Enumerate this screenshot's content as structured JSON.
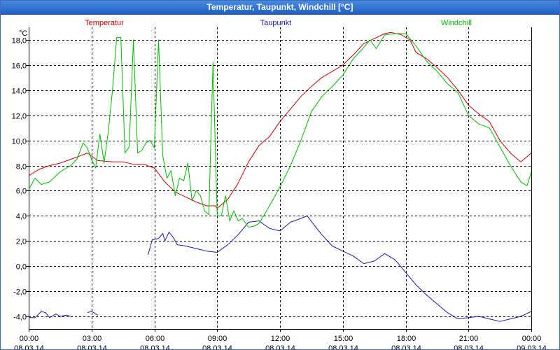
{
  "window": {
    "title": "Temperatur, Taupunkt, Windchill [°C]"
  },
  "colors": {
    "temperatur": "#cc0000",
    "taupunkt": "#1a1aaa",
    "windchill": "#00bb00",
    "titlebar": "#2f72d4"
  },
  "chart_data": {
    "type": "line",
    "title": "Temperatur, Taupunkt, Windchill [°C]",
    "ylabel": "°C",
    "xlabel": "",
    "ylim": [
      -5,
      19
    ],
    "xlim": [
      0,
      24
    ],
    "y_ticks": [
      -4,
      -2,
      0,
      2,
      4,
      6,
      8,
      10,
      12,
      14,
      16,
      18
    ],
    "y_tick_labels": [
      "-4,0",
      "-2,0",
      "0,0",
      "2,0",
      "4,0",
      "6,0",
      "8,0",
      "10,0",
      "12,0",
      "14,0",
      "16,0",
      "18,0"
    ],
    "x_ticks": [
      0,
      3,
      6,
      9,
      12,
      15,
      18,
      21,
      24
    ],
    "x_tick_labels": [
      [
        "00:00",
        "08.03.14"
      ],
      [
        "03:00",
        "08.03.14"
      ],
      [
        "06:00",
        "08.03.14"
      ],
      [
        "09:00",
        "08.03.14"
      ],
      [
        "12:00",
        "08.03.14"
      ],
      [
        "15:00",
        "08.03.14"
      ],
      [
        "18:00",
        "08.03.14"
      ],
      [
        "21:00",
        "08.03.14"
      ],
      [
        "00:00",
        "09.03.14"
      ]
    ],
    "grid": true,
    "legend": [
      "Temperatur",
      "Taupunkt",
      "Windchill"
    ],
    "series": [
      {
        "name": "Temperatur",
        "color": "#cc0000",
        "segments": [
          [
            [
              0.0,
              7.2
            ],
            [
              0.5,
              7.7
            ],
            [
              1.0,
              8.0
            ],
            [
              1.5,
              8.2
            ],
            [
              2.0,
              8.5
            ],
            [
              2.5,
              8.8
            ],
            [
              2.8,
              9.0
            ],
            [
              3.3,
              8.4
            ],
            [
              4.0,
              8.3
            ],
            [
              4.5,
              8.3
            ],
            [
              5.0,
              8.1
            ],
            [
              5.5,
              8.1
            ],
            [
              6.0,
              7.8
            ],
            [
              6.5,
              6.7
            ],
            [
              7.0,
              5.9
            ],
            [
              7.5,
              5.5
            ],
            [
              8.0,
              5.1
            ],
            [
              8.5,
              4.8
            ],
            [
              8.9,
              4.8
            ],
            [
              9.0,
              4.6
            ],
            [
              9.5,
              5.3
            ],
            [
              10.0,
              6.6
            ],
            [
              10.5,
              8.3
            ],
            [
              11.0,
              9.6
            ],
            [
              11.5,
              10.3
            ],
            [
              12.0,
              11.5
            ],
            [
              12.5,
              12.5
            ],
            [
              13.0,
              13.5
            ],
            [
              13.5,
              14.3
            ],
            [
              14.0,
              15.0
            ],
            [
              14.5,
              15.5
            ],
            [
              15.0,
              16.0
            ],
            [
              15.5,
              16.8
            ],
            [
              16.0,
              17.7
            ],
            [
              16.5,
              18.1
            ],
            [
              17.0,
              18.5
            ],
            [
              17.3,
              18.6
            ],
            [
              17.8,
              18.4
            ],
            [
              18.2,
              18.0
            ],
            [
              18.5,
              17.0
            ],
            [
              19.0,
              16.5
            ],
            [
              19.5,
              15.8
            ],
            [
              20.0,
              15.0
            ],
            [
              20.5,
              14.0
            ],
            [
              21.0,
              12.8
            ],
            [
              21.5,
              12.1
            ],
            [
              22.0,
              11.5
            ],
            [
              22.5,
              10.0
            ],
            [
              23.0,
              9.0
            ],
            [
              23.5,
              8.3
            ],
            [
              24.0,
              9.0
            ]
          ]
        ]
      },
      {
        "name": "Taupunkt",
        "color": "#1a1aaa",
        "segments": [
          [
            [
              0.0,
              -4.1
            ],
            [
              0.3,
              -4.1
            ],
            [
              0.6,
              -3.6
            ],
            [
              0.8,
              -3.7
            ],
            [
              1.0,
              -4.1
            ],
            [
              1.3,
              -3.8
            ],
            [
              1.5,
              -4.0
            ],
            [
              1.8,
              -3.9
            ],
            [
              2.0,
              -4.0
            ]
          ],
          [
            [
              2.8,
              -3.7
            ],
            [
              3.0,
              -3.6
            ],
            [
              3.3,
              -3.9
            ]
          ],
          [
            [
              5.7,
              0.9
            ],
            [
              5.9,
              2.1
            ],
            [
              6.2,
              2.2
            ],
            [
              6.4,
              2.6
            ],
            [
              6.5,
              2.0
            ],
            [
              6.7,
              2.7
            ],
            [
              6.9,
              2.3
            ],
            [
              7.1,
              1.7
            ],
            [
              7.5,
              1.6
            ],
            [
              8.0,
              1.4
            ],
            [
              8.5,
              1.2
            ],
            [
              9.0,
              1.1
            ],
            [
              9.5,
              1.7
            ],
            [
              10.0,
              2.5
            ],
            [
              10.5,
              3.5
            ],
            [
              11.0,
              3.6
            ],
            [
              11.5,
              3.0
            ],
            [
              12.0,
              2.8
            ],
            [
              12.5,
              3.5
            ],
            [
              13.0,
              3.8
            ],
            [
              13.3,
              4.0
            ],
            [
              13.8,
              2.9
            ],
            [
              14.0,
              2.5
            ],
            [
              14.5,
              1.6
            ],
            [
              15.0,
              1.2
            ],
            [
              15.5,
              0.8
            ],
            [
              16.0,
              0.2
            ],
            [
              16.5,
              0.4
            ],
            [
              17.0,
              1.0
            ],
            [
              17.5,
              0.5
            ],
            [
              18.0,
              -0.5
            ],
            [
              18.5,
              -1.5
            ],
            [
              19.0,
              -2.3
            ],
            [
              19.5,
              -3.0
            ],
            [
              20.0,
              -3.7
            ],
            [
              20.5,
              -4.2
            ],
            [
              21.0,
              -4.1
            ],
            [
              21.5,
              -4.0
            ],
            [
              22.0,
              -4.2
            ],
            [
              22.5,
              -4.4
            ],
            [
              23.0,
              -4.2
            ],
            [
              23.5,
              -4.0
            ],
            [
              24.0,
              -3.6
            ]
          ]
        ]
      },
      {
        "name": "Windchill",
        "color": "#00bb00",
        "segments": [
          [
            [
              0.0,
              6.1
            ],
            [
              0.3,
              7.0
            ],
            [
              0.6,
              6.5
            ],
            [
              1.0,
              6.7
            ],
            [
              1.5,
              7.5
            ],
            [
              2.0,
              8.0
            ],
            [
              2.3,
              8.5
            ],
            [
              2.6,
              9.8
            ],
            [
              2.8,
              9.4
            ],
            [
              3.0,
              8.5
            ],
            [
              3.2,
              7.8
            ],
            [
              3.4,
              10.5
            ],
            [
              3.6,
              8.2
            ],
            [
              3.8,
              10.7
            ],
            [
              4.0,
              14.0
            ],
            [
              4.2,
              18.2
            ],
            [
              4.4,
              18.2
            ],
            [
              4.6,
              9.0
            ],
            [
              4.8,
              9.5
            ],
            [
              5.0,
              18.0
            ],
            [
              5.2,
              9.0
            ],
            [
              5.4,
              9.2
            ],
            [
              5.6,
              9.8
            ],
            [
              5.8,
              10.0
            ],
            [
              6.0,
              9.4
            ],
            [
              6.2,
              18.0
            ],
            [
              6.4,
              8.8
            ],
            [
              6.6,
              7.0
            ],
            [
              6.8,
              7.6
            ],
            [
              7.0,
              5.6
            ],
            [
              7.2,
              7.0
            ],
            [
              7.4,
              6.8
            ],
            [
              7.6,
              8.2
            ],
            [
              7.8,
              5.2
            ],
            [
              8.0,
              6.0
            ],
            [
              8.2,
              5.6
            ],
            [
              8.4,
              4.4
            ],
            [
              8.6,
              4.1
            ],
            [
              8.8,
              16.2
            ],
            [
              9.0,
              4.0
            ],
            [
              9.2,
              4.0
            ],
            [
              9.4,
              5.6
            ],
            [
              9.6,
              3.6
            ],
            [
              9.8,
              4.4
            ],
            [
              10.0,
              3.6
            ],
            [
              10.2,
              3.8
            ],
            [
              10.5,
              3.1
            ],
            [
              10.8,
              3.2
            ],
            [
              11.0,
              3.4
            ],
            [
              11.5,
              4.8
            ],
            [
              12.0,
              6.3
            ],
            [
              12.5,
              8.0
            ],
            [
              13.0,
              10.0
            ],
            [
              13.5,
              12.3
            ],
            [
              14.0,
              13.5
            ],
            [
              14.5,
              14.3
            ],
            [
              15.0,
              15.2
            ],
            [
              15.5,
              16.5
            ],
            [
              16.0,
              17.4
            ],
            [
              16.3,
              18.0
            ],
            [
              16.6,
              17.3
            ],
            [
              17.0,
              18.4
            ],
            [
              17.5,
              18.5
            ],
            [
              18.0,
              18.5
            ],
            [
              18.5,
              17.5
            ],
            [
              19.0,
              16.3
            ],
            [
              19.5,
              15.5
            ],
            [
              20.0,
              14.5
            ],
            [
              20.5,
              13.8
            ],
            [
              21.0,
              12.0
            ],
            [
              21.5,
              11.3
            ],
            [
              22.0,
              11.0
            ],
            [
              22.5,
              9.5
            ],
            [
              23.0,
              8.0
            ],
            [
              23.5,
              6.7
            ],
            [
              23.8,
              6.4
            ],
            [
              24.0,
              7.5
            ]
          ]
        ]
      }
    ]
  }
}
